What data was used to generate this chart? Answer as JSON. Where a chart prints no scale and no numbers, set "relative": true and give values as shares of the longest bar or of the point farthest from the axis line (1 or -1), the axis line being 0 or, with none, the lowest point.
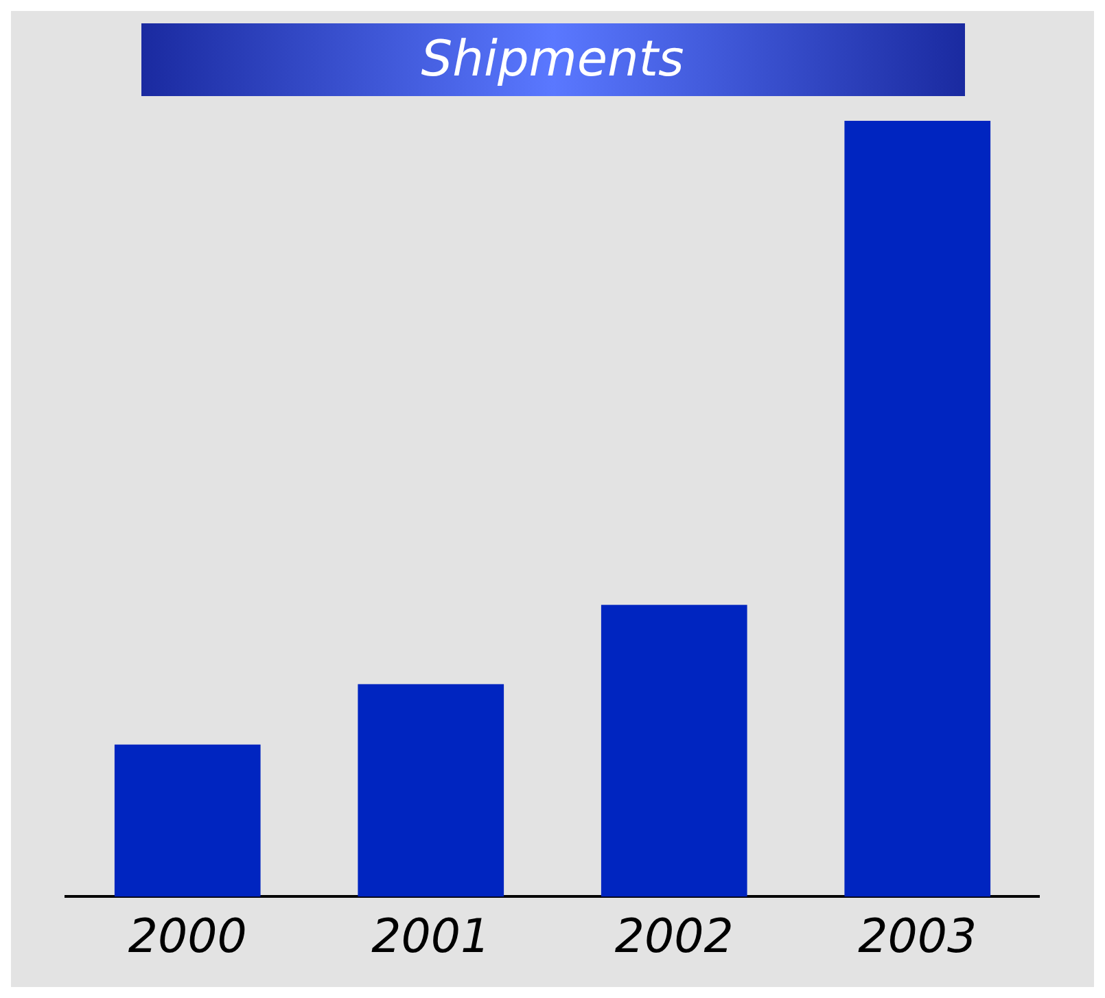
{
  "chart_data": {
    "type": "bar",
    "title": "Shipments",
    "categories": [
      "2000",
      "2001",
      "2002",
      "2003"
    ],
    "values": [
      0.196,
      0.274,
      0.376,
      1
    ],
    "color": "#0025c0",
    "relative": true
  }
}
